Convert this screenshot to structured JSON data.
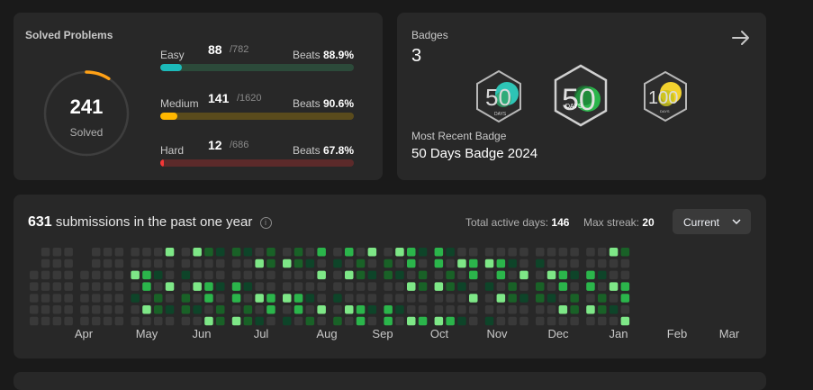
{
  "solved": {
    "title": "Solved Problems",
    "total": "241",
    "total_label": "Solved",
    "ring_accent": "#ffa116",
    "difficulties": [
      {
        "name": "Easy",
        "solved": "88",
        "total": "/782",
        "beats_label": "Beats",
        "beats": "88.9%",
        "fraction": 0.113,
        "color": "#1cbaba",
        "track": "#2c4a3a"
      },
      {
        "name": "Medium",
        "solved": "141",
        "total": "/1620",
        "beats_label": "Beats",
        "beats": "90.6%",
        "fraction": 0.087,
        "color": "#ffb700",
        "track": "#5a4b1c"
      },
      {
        "name": "Hard",
        "solved": "12",
        "total": "/686",
        "beats_label": "Beats",
        "beats": "67.8%",
        "fraction": 0.017,
        "color": "#f63737",
        "track": "#5c2a2a"
      }
    ]
  },
  "badges": {
    "label": "Badges",
    "count": "3",
    "recent_label": "Most Recent Badge",
    "recent": "50 Days Badge 2024",
    "items": [
      {
        "icon": "50-days-badge-icon",
        "digits": "50",
        "caption": "DAYS"
      },
      {
        "icon": "50-days-badge-2024-icon",
        "digits": "50",
        "caption": "DAYS"
      },
      {
        "icon": "100-days-badge-icon",
        "digits": "100",
        "caption": "DAYS"
      }
    ]
  },
  "submissions": {
    "count": "631",
    "text": "submissions in the past one year",
    "active_label": "Total active days:",
    "active_days": "146",
    "streak_label": "Max streak:",
    "max_streak": "20",
    "range": "Current",
    "months": [
      "Apr",
      "May",
      "Jun",
      "Jul",
      "Aug",
      "Sep",
      "Oct",
      "Nov",
      "Dec",
      "Jan",
      "Feb",
      "Mar"
    ],
    "colors": [
      "#393939",
      "#0e4429",
      "#196127",
      "#2bb54b",
      "#7ee787"
    ]
  }
}
